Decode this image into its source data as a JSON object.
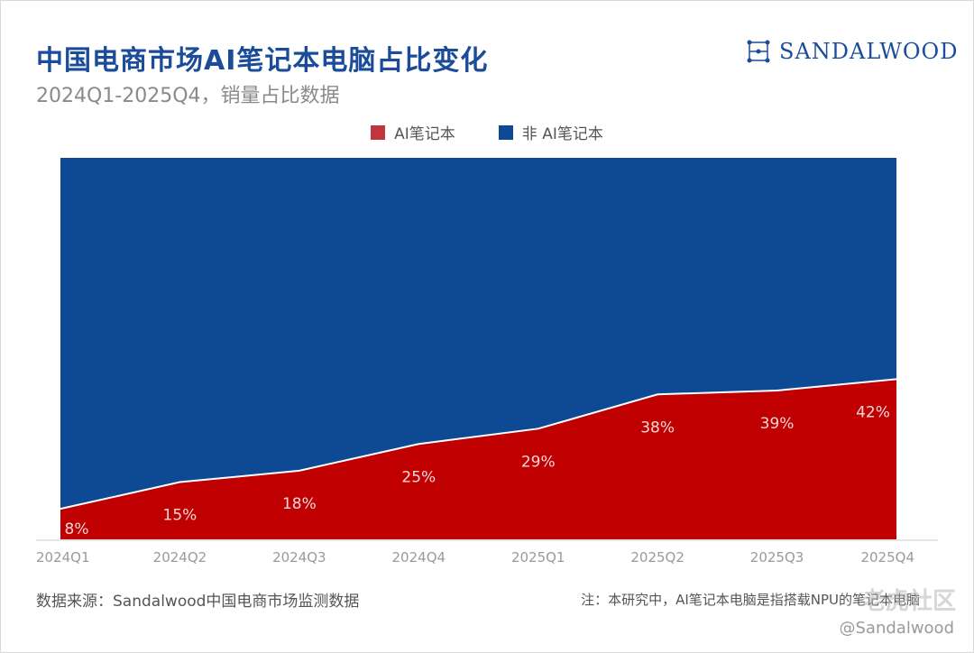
{
  "header": {
    "title": "中国电商市场AI笔记本电脑占比变化",
    "subtitle": "2024Q1-2025Q4，销量占比数据"
  },
  "brand": {
    "name": "SANDALWOOD",
    "logo_icon": "network-node-icon"
  },
  "colors": {
    "ai": "#c00000",
    "non_ai": "#0e4a94",
    "title": "#1a4c9a"
  },
  "chart_data": {
    "type": "area",
    "categories": [
      "2024Q1",
      "2024Q2",
      "2024Q3",
      "2024Q4",
      "2025Q1",
      "2025Q2",
      "2025Q3",
      "2025Q4"
    ],
    "series": [
      {
        "name": "AI笔记本",
        "values": [
          8,
          15,
          18,
          25,
          29,
          38,
          39,
          42
        ],
        "labels": [
          "8%",
          "15%",
          "18%",
          "25%",
          "29%",
          "38%",
          "39%",
          "42%"
        ]
      },
      {
        "name": "非 AI笔记本",
        "values": [
          92,
          85,
          82,
          75,
          71,
          62,
          61,
          58
        ]
      }
    ],
    "stacked": true,
    "ylim": [
      0,
      100
    ],
    "grid": false,
    "legend_position": "top-center",
    "title": "中国电商市场AI笔记本电脑占比变化"
  },
  "footer": {
    "source": "数据来源：Sandalwood中国电商市场监测数据",
    "note": "注：本研究中，AI笔记本电脑是指搭载NPU的笔记本电脑",
    "watermark": "老虎社区",
    "handle": "@Sandalwood"
  }
}
